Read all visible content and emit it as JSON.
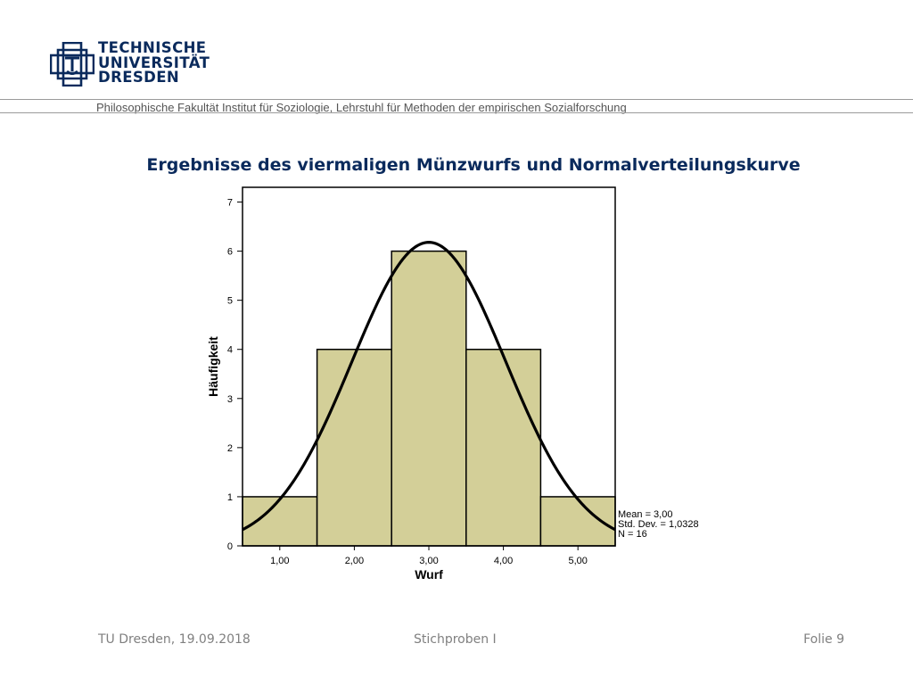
{
  "header": {
    "logo_lines": [
      "TECHNISCHE",
      "UNIVERSITÄT",
      "DRESDEN"
    ],
    "faculty": "Philosophische Fakultät",
    "institute": "Institut für Soziologie, Lehrstuhl für Methoden der empirischen Sozialforschung"
  },
  "slide": {
    "title": "Ergebnisse des viermaligen Münzwurfs und Normalverteilungskurve"
  },
  "chart_data": {
    "type": "bar",
    "title": "",
    "xlabel": "Wurf",
    "ylabel": "Häufigkeit",
    "categories": [
      "1,00",
      "2,00",
      "3,00",
      "4,00",
      "5,00"
    ],
    "x": [
      1,
      2,
      3,
      4,
      5
    ],
    "values": [
      1,
      4,
      6,
      4,
      1
    ],
    "xlim": [
      0.5,
      5.5
    ],
    "ylim": [
      0,
      7.3
    ],
    "yticks": [
      0,
      1,
      2,
      3,
      4,
      5,
      6,
      7
    ],
    "grid": false,
    "bar_color": "#d3cf98",
    "bar_edge_color": "#000000",
    "normal_curve": {
      "mean": 3.0,
      "sd": 1.0328,
      "n": 16,
      "bin_width": 1,
      "color": "#000000"
    },
    "stats": [
      "Mean = 3,00",
      "Std. Dev. = 1,0328",
      "N = 16"
    ]
  },
  "footer": {
    "left": "TU Dresden, 19.09.2018",
    "center": "Stichproben I",
    "right": "Folie 9"
  },
  "colors": {
    "brand": "#0a2a5c",
    "footer_text": "#808080",
    "header_text": "#555555"
  }
}
